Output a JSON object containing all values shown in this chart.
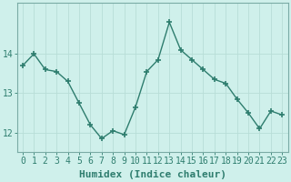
{
  "x": [
    0,
    1,
    2,
    3,
    4,
    5,
    6,
    7,
    8,
    9,
    10,
    11,
    12,
    13,
    14,
    15,
    16,
    17,
    18,
    19,
    20,
    21,
    22,
    23
  ],
  "y": [
    13.7,
    14.0,
    13.6,
    13.55,
    13.3,
    12.75,
    12.2,
    11.85,
    12.05,
    11.95,
    12.65,
    13.55,
    13.85,
    14.8,
    14.1,
    13.85,
    13.6,
    13.35,
    13.25,
    12.85,
    12.5,
    12.1,
    12.55,
    12.45
  ],
  "line_color": "#2e7d6e",
  "marker": "+",
  "marker_size": 5,
  "bg_color": "#cff0eb",
  "grid_color": "#b8ddd7",
  "xlabel": "Humidex (Indice chaleur)",
  "yticks": [
    12,
    13,
    14
  ],
  "ylim": [
    11.5,
    15.3
  ],
  "xlim": [
    -0.5,
    23.5
  ],
  "tick_color": "#2e7d6e",
  "xlabel_fontsize": 8,
  "tick_fontsize": 7,
  "linewidth": 1.0,
  "spine_color": "#7aaba5"
}
